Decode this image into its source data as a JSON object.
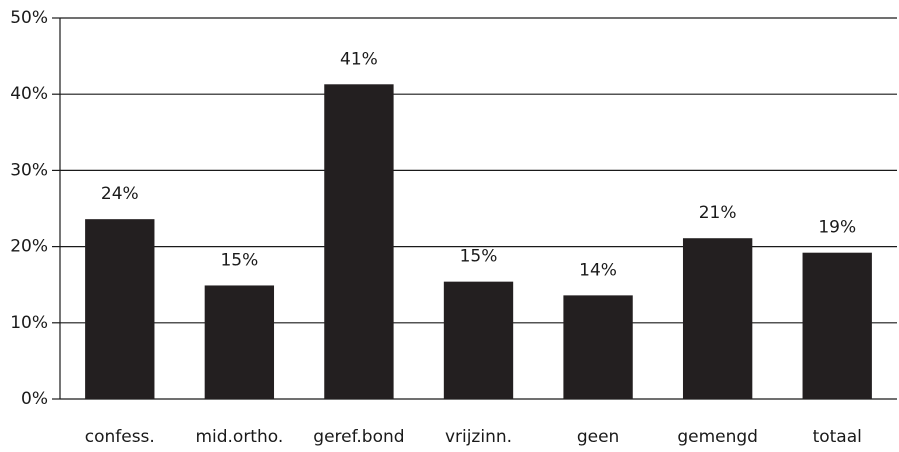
{
  "chart_data": {
    "type": "bar",
    "categories": [
      "confess.",
      "mid.ortho.",
      "geref.bond",
      "vrijzinn.",
      "geen",
      "gemengd",
      "totaal"
    ],
    "values": [
      23.6,
      14.9,
      41.3,
      15.4,
      13.6,
      21.1,
      19.2
    ],
    "value_labels": [
      "24%",
      "15%",
      "41%",
      "15%",
      "14%",
      "21%",
      "19%"
    ],
    "color": "#231f20",
    "ylim": [
      0,
      50
    ],
    "yticks": [
      {
        "value": 0,
        "label": "0%"
      },
      {
        "value": 10,
        "label": "10%"
      },
      {
        "value": 20,
        "label": "20%"
      },
      {
        "value": 30,
        "label": "30%"
      },
      {
        "value": 40,
        "label": "40%"
      },
      {
        "value": 50,
        "label": "50%"
      }
    ],
    "grid": true
  }
}
